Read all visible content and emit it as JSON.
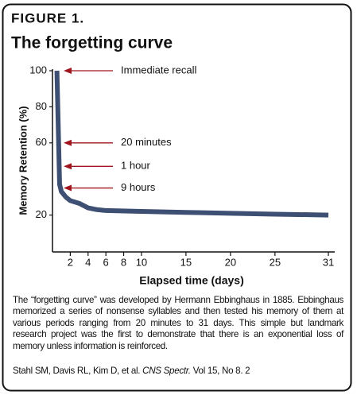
{
  "chart_data": {
    "type": "line",
    "figure_label": "FIGURE 1.",
    "title": "The forgetting curve",
    "x_label": "Elapsed time (days)",
    "y_label": "Memory Retention (%)",
    "x": [
      0.5,
      0.8,
      1,
      1.5,
      2,
      3,
      4,
      5,
      6,
      10,
      15,
      20,
      25,
      31
    ],
    "series": [
      {
        "name": "Memory retention",
        "color": "#3d4f73",
        "values": [
          100,
          37,
          33,
          30,
          28,
          26.5,
          24,
          23,
          22.5,
          22,
          21.5,
          21,
          20.5,
          20
        ]
      }
    ],
    "xlim": [
      0,
      31
    ],
    "ylim": [
      0,
      100
    ],
    "xticks": [
      2,
      4,
      6,
      8,
      10,
      15,
      20,
      25,
      31
    ],
    "yticks": [
      20,
      60,
      80,
      100
    ],
    "annotations": [
      {
        "label": "Immediate recall",
        "value": 100
      },
      {
        "label": "20 minutes",
        "value": 60
      },
      {
        "label": "1 hour",
        "value": 47
      },
      {
        "label": "9 hours",
        "value": 35
      }
    ],
    "annotation_color": "#a0141e",
    "caption": "The “forgetting curve” was developed by Hermann Ebbinghaus in 1885. Ebbinghaus memorized a series of nonsense syllables and then tested his memory of them at various periods ranging from 20 minutes to 31 days.  This simple but landmark research project was the first to demonstrate that there is an exponential loss of memory unless information is reinforced.",
    "citation_authors": "Stahl SM, Davis RL, Kim D, et al.",
    "citation_journal": "CNS Spectr.",
    "citation_rest": "Vol 15, No 8. 2"
  }
}
